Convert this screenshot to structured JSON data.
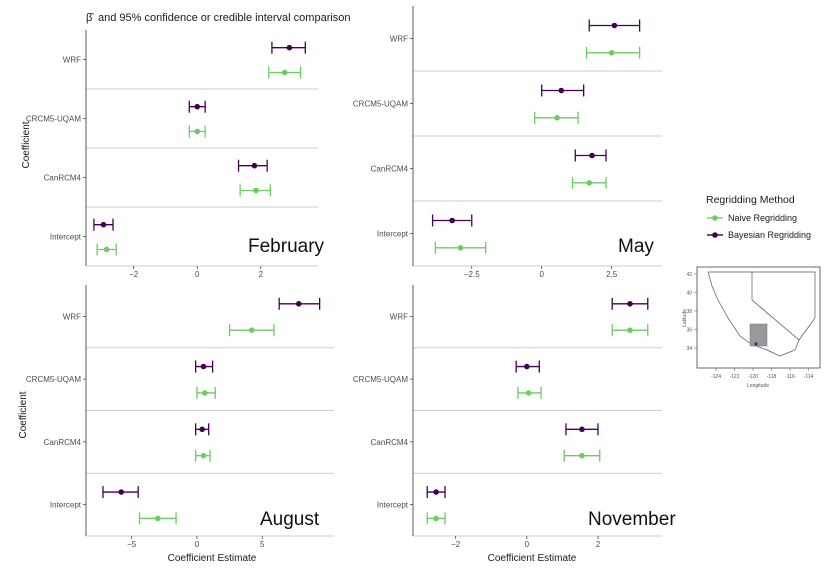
{
  "title_prefix": "β̂",
  "title_rest": "and 95% confidence or credible interval comparison",
  "ylabel": "Coefficient",
  "xlabel": "Coefficient Estimate",
  "legend": {
    "title": "Regridding Method",
    "naive_label": "Naive Regridding",
    "bayes_label": "Bayesian Regridding"
  },
  "colors": {
    "naive": "#6ecb63",
    "bayes": "#440154"
  },
  "map": {
    "x_ticks": [
      "-124",
      "-122",
      "-120",
      "-118",
      "-116",
      "-114"
    ],
    "y_ticks": [
      "34",
      "36",
      "38",
      "40",
      "42"
    ],
    "xlabel": "Longitude",
    "ylabel": "Latitude"
  },
  "chart_data": [
    {
      "type": "forest",
      "month": "February",
      "categories": [
        "WRF",
        "CRCM5-UQAM",
        "CanRCM4",
        "Intercept"
      ],
      "xticks": [
        -2,
        0,
        2
      ],
      "xlim": [
        -3.5,
        3.8
      ],
      "series": [
        {
          "name": "Bayesian Regridding",
          "points": [
            {
              "est": 2.9,
              "lo": 2.35,
              "hi": 3.4
            },
            {
              "est": 0.0,
              "lo": -0.25,
              "hi": 0.25
            },
            {
              "est": 1.8,
              "lo": 1.3,
              "hi": 2.2
            },
            {
              "est": -2.95,
              "lo": -3.25,
              "hi": -2.65
            }
          ]
        },
        {
          "name": "Naive Regridding",
          "points": [
            {
              "est": 2.75,
              "lo": 2.25,
              "hi": 3.25
            },
            {
              "est": 0.0,
              "lo": -0.25,
              "hi": 0.25
            },
            {
              "est": 1.85,
              "lo": 1.35,
              "hi": 2.3
            },
            {
              "est": -2.85,
              "lo": -3.15,
              "hi": -2.55
            }
          ]
        }
      ]
    },
    {
      "type": "forest",
      "month": "May",
      "categories": [
        "WRF",
        "CRCM5-UQAM",
        "CanRCM4",
        "Intercept"
      ],
      "xticks": [
        -2.5,
        0.0,
        2.5
      ],
      "xlim": [
        -4.6,
        4.3
      ],
      "series": [
        {
          "name": "Bayesian Regridding",
          "points": [
            {
              "est": 2.6,
              "lo": 1.7,
              "hi": 3.5
            },
            {
              "est": 0.7,
              "lo": 0.0,
              "hi": 1.5
            },
            {
              "est": 1.8,
              "lo": 1.2,
              "hi": 2.3
            },
            {
              "est": -3.2,
              "lo": -3.9,
              "hi": -2.5
            }
          ]
        },
        {
          "name": "Naive Regridding",
          "points": [
            {
              "est": 2.5,
              "lo": 1.6,
              "hi": 3.5
            },
            {
              "est": 0.55,
              "lo": -0.25,
              "hi": 1.3
            },
            {
              "est": 1.7,
              "lo": 1.1,
              "hi": 2.3
            },
            {
              "est": -2.9,
              "lo": -3.8,
              "hi": -2.0
            }
          ]
        }
      ]
    },
    {
      "type": "forest",
      "month": "August",
      "categories": [
        "WRF",
        "CRCM5-UQAM",
        "CanRCM4",
        "Intercept"
      ],
      "xticks": [
        -5,
        0,
        5
      ],
      "xlim": [
        -8.5,
        10.5
      ],
      "series": [
        {
          "name": "Bayesian Regridding",
          "points": [
            {
              "est": 7.8,
              "lo": 6.3,
              "hi": 9.4
            },
            {
              "est": 0.5,
              "lo": -0.1,
              "hi": 1.2
            },
            {
              "est": 0.4,
              "lo": -0.1,
              "hi": 0.9
            },
            {
              "est": -5.8,
              "lo": -7.2,
              "hi": -4.5
            }
          ]
        },
        {
          "name": "Naive Regridding",
          "points": [
            {
              "est": 4.2,
              "lo": 2.5,
              "hi": 5.9
            },
            {
              "est": 0.6,
              "lo": 0.0,
              "hi": 1.4
            },
            {
              "est": 0.5,
              "lo": -0.1,
              "hi": 1.0
            },
            {
              "est": -3.0,
              "lo": -4.4,
              "hi": -1.6
            }
          ]
        }
      ]
    },
    {
      "type": "forest",
      "month": "November",
      "categories": [
        "WRF",
        "CRCM5-UQAM",
        "CanRCM4",
        "Intercept"
      ],
      "xticks": [
        -2,
        0,
        2
      ],
      "xlim": [
        -3.2,
        3.8
      ],
      "series": [
        {
          "name": "Bayesian Regridding",
          "points": [
            {
              "est": 2.9,
              "lo": 2.4,
              "hi": 3.4
            },
            {
              "est": 0.0,
              "lo": -0.3,
              "hi": 0.35
            },
            {
              "est": 1.55,
              "lo": 1.1,
              "hi": 2.0
            },
            {
              "est": -2.55,
              "lo": -2.8,
              "hi": -2.3
            }
          ]
        },
        {
          "name": "Naive Regridding",
          "points": [
            {
              "est": 2.9,
              "lo": 2.4,
              "hi": 3.4
            },
            {
              "est": 0.05,
              "lo": -0.25,
              "hi": 0.4
            },
            {
              "est": 1.55,
              "lo": 1.05,
              "hi": 2.05
            },
            {
              "est": -2.55,
              "lo": -2.8,
              "hi": -2.3
            }
          ]
        }
      ]
    }
  ]
}
